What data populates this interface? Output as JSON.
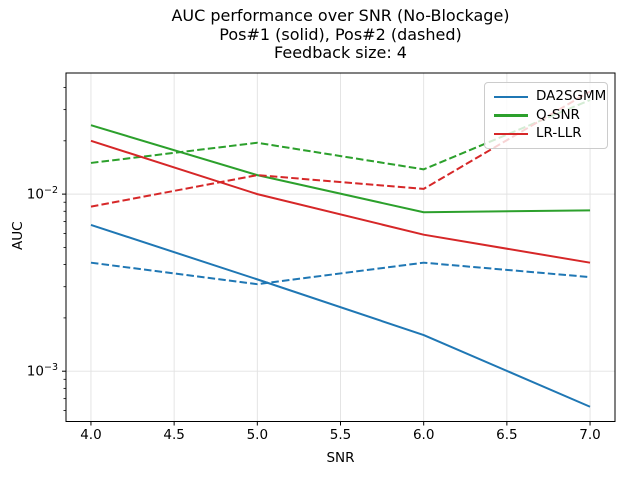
{
  "title": {
    "line1": "AUC performance over SNR (No-Blockage)",
    "line2": "Pos#1 (solid), Pos#2 (dashed)",
    "line3": "Feedback size: 4"
  },
  "chart_data": {
    "type": "line",
    "title": "AUC performance over SNR (No-Blockage)\nPos#1 (solid), Pos#2 (dashed)\nFeedback size: 4",
    "xlabel": "SNR",
    "ylabel": "AUC",
    "yscale": "log",
    "grid": true,
    "legend_position": "upper right",
    "xlim": [
      3.85,
      7.15
    ],
    "ylim": [
      0.00052,
      0.0483
    ],
    "x": [
      4,
      5,
      6,
      7
    ],
    "xticks": [
      {
        "v": 4.0,
        "label": "4.0"
      },
      {
        "v": 4.5,
        "label": "4.5"
      },
      {
        "v": 5.0,
        "label": "5.0"
      },
      {
        "v": 5.5,
        "label": "5.5"
      },
      {
        "v": 6.0,
        "label": "6.0"
      },
      {
        "v": 6.5,
        "label": "6.5"
      },
      {
        "v": 7.0,
        "label": "7.0"
      }
    ],
    "yticks": [
      {
        "v": 0.01,
        "label": "10⁻²",
        "base": "10",
        "exp": "−2"
      },
      {
        "v": 0.001,
        "label": "10⁻³",
        "base": "10",
        "exp": "−3"
      }
    ],
    "series": [
      {
        "name": "DA2SGMM",
        "position": "Pos#1",
        "style": "solid",
        "color": "#1f77b4",
        "values": [
          0.0067,
          0.0033,
          0.0016,
          0.00063
        ]
      },
      {
        "name": "DA2SGMM",
        "position": "Pos#2",
        "style": "dashed",
        "color": "#1f77b4",
        "values": [
          0.0041,
          0.0031,
          0.0041,
          0.0034
        ]
      },
      {
        "name": "Q-SNR",
        "position": "Pos#1",
        "style": "solid",
        "color": "#2ca02c",
        "values": [
          0.0245,
          0.0128,
          0.0079,
          0.0081
        ]
      },
      {
        "name": "Q-SNR",
        "position": "Pos#2",
        "style": "dashed",
        "color": "#2ca02c",
        "values": [
          0.015,
          0.0195,
          0.0138,
          0.034
        ]
      },
      {
        "name": "LR-LLR",
        "position": "Pos#1",
        "style": "solid",
        "color": "#d62728",
        "values": [
          0.02,
          0.01,
          0.0059,
          0.0041
        ]
      },
      {
        "name": "LR-LLR",
        "position": "Pos#2",
        "style": "dashed",
        "color": "#d62728",
        "values": [
          0.0085,
          0.0128,
          0.0107,
          0.038
        ]
      }
    ],
    "legend": [
      {
        "label": "DA2SGMM",
        "color": "#1f77b4"
      },
      {
        "label": "Q-SNR",
        "color": "#2ca02c"
      },
      {
        "label": "LR-LLR",
        "color": "#d62728"
      }
    ]
  },
  "colors": {
    "background": "#ffffff",
    "spine": "#000000",
    "grid": "#e2e2e2",
    "tick": "#000000"
  }
}
